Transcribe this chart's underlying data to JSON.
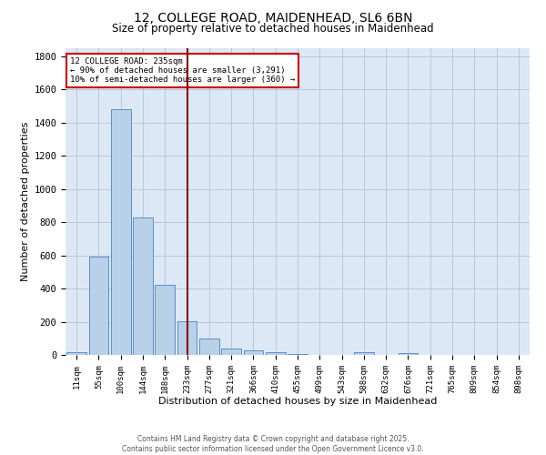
{
  "title_line1": "12, COLLEGE ROAD, MAIDENHEAD, SL6 6BN",
  "title_line2": "Size of property relative to detached houses in Maidenhead",
  "xlabel": "Distribution of detached houses by size in Maidenhead",
  "ylabel": "Number of detached properties",
  "bin_labels": [
    "11sqm",
    "55sqm",
    "100sqm",
    "144sqm",
    "188sqm",
    "233sqm",
    "277sqm",
    "321sqm",
    "366sqm",
    "410sqm",
    "455sqm",
    "499sqm",
    "543sqm",
    "588sqm",
    "632sqm",
    "676sqm",
    "721sqm",
    "765sqm",
    "809sqm",
    "854sqm",
    "898sqm"
  ],
  "bin_values": [
    15,
    590,
    1480,
    830,
    420,
    205,
    100,
    38,
    28,
    18,
    8,
    0,
    0,
    15,
    0,
    12,
    0,
    0,
    0,
    0,
    0
  ],
  "bar_color": "#b8d0e8",
  "bar_edge_color": "#5b8fc9",
  "bg_color": "#dce8f5",
  "grid_color": "#b8c8dc",
  "vline_color": "#8b0000",
  "annotation_title": "12 COLLEGE ROAD: 235sqm",
  "annotation_line1": "← 90% of detached houses are smaller (3,291)",
  "annotation_line2": "10% of semi-detached houses are larger (360) →",
  "annotation_box_color": "#cc0000",
  "footer_line1": "Contains HM Land Registry data © Crown copyright and database right 2025.",
  "footer_line2": "Contains public sector information licensed under the Open Government Licence v3.0.",
  "ylim": [
    0,
    1850
  ],
  "yticks": [
    0,
    200,
    400,
    600,
    800,
    1000,
    1200,
    1400,
    1600,
    1800
  ]
}
